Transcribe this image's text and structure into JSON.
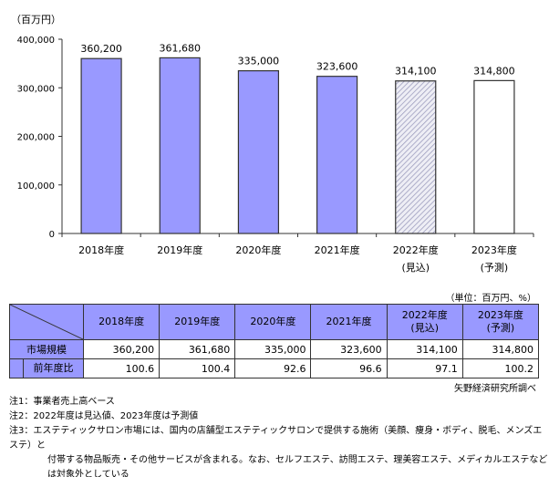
{
  "chart_data": {
    "type": "bar",
    "unit_label": "（百万円）",
    "categories": [
      [
        "2018年度"
      ],
      [
        "2019年度"
      ],
      [
        "2020年度"
      ],
      [
        "2021年度"
      ],
      [
        "2022年度",
        "(見込)"
      ],
      [
        "2023年度",
        "(予測)"
      ]
    ],
    "values": [
      360200,
      361680,
      335000,
      323600,
      314100,
      314800
    ],
    "value_labels": [
      "360,200",
      "361,680",
      "335,000",
      "323,600",
      "314,100",
      "314,800"
    ],
    "bar_styles": [
      "solid",
      "solid",
      "solid",
      "solid",
      "hatched",
      "empty"
    ],
    "ylim": [
      0,
      400000
    ],
    "yticks": [
      0,
      100000,
      200000,
      300000,
      400000
    ],
    "ytick_labels": [
      "0",
      "100,000",
      "200,000",
      "300,000",
      "400,000"
    ],
    "grid": false,
    "colors": {
      "bar": "#9999ff",
      "hatch": "#aaaacc",
      "border": "#333333"
    }
  },
  "table": {
    "unit": "（単位：百万円、%）",
    "headers": [
      [
        "2018年度"
      ],
      [
        "2019年度"
      ],
      [
        "2020年度"
      ],
      [
        "2021年度"
      ],
      [
        "2022年度",
        "(見込)"
      ],
      [
        "2023年度",
        "(予測)"
      ]
    ],
    "rows": [
      {
        "label": "市場規模",
        "values": [
          "360,200",
          "361,680",
          "335,000",
          "323,600",
          "314,100",
          "314,800"
        ]
      },
      {
        "label": "前年度比",
        "values": [
          "100.6",
          "100.4",
          "92.6",
          "96.6",
          "97.1",
          "100.2"
        ]
      }
    ]
  },
  "source": "矢野経済研究所調べ",
  "notes": [
    "注1：事業者売上高ベース",
    "注2：2022年度は見込値、2023年度は予測値",
    "注3：エステティックサロン市場には、国内の店舗型エステティックサロンで提供する施術（美顔、痩身・ボディ、脱毛、メンズエステ）と",
    "付帯する物品販売・その他サービスが含まれる。なお、セルフエステ、訪問エステ、理美容エステ、メディカルエステなどは対象外としている"
  ]
}
